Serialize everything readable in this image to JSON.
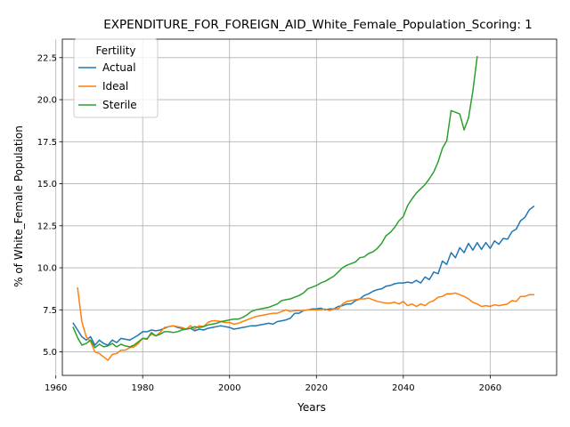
{
  "chart_data": {
    "type": "line",
    "title": "EXPENDITURE_FOR_FOREIGN_AID_White_Female_Population_Scoring: 1",
    "xlabel": "Years",
    "ylabel": "% of White_Female Population",
    "xlim": [
      1961.5,
      2075.3
    ],
    "ylim": [
      3.6,
      23.6
    ],
    "xticks": [
      1960,
      1980,
      2000,
      2020,
      2040,
      2060
    ],
    "yticks": [
      5.0,
      7.5,
      10.0,
      12.5,
      15.0,
      17.5,
      20.0,
      22.5
    ],
    "xtick_labels": [
      "1960",
      "1980",
      "2000",
      "2020",
      "2040",
      "2060"
    ],
    "ytick_labels": [
      "5.0",
      "7.5",
      "10.0",
      "12.5",
      "15.0",
      "17.5",
      "20.0",
      "22.5"
    ],
    "grid": true,
    "legend": {
      "title": "Fertility",
      "position": "top-left"
    },
    "series": [
      {
        "name": "Actual",
        "color": "#1f77b4",
        "points": [
          [
            1964,
            6.7
          ],
          [
            1965,
            6.3
          ],
          [
            1966,
            5.9
          ],
          [
            1967,
            5.7
          ],
          [
            1968,
            5.9
          ],
          [
            1969,
            5.4
          ],
          [
            1970,
            5.7
          ],
          [
            1971,
            5.5
          ],
          [
            1972,
            5.4
          ],
          [
            1973,
            5.7
          ],
          [
            1974,
            5.55
          ],
          [
            1975,
            5.8
          ],
          [
            1976,
            5.75
          ],
          [
            1977,
            5.7
          ],
          [
            1978,
            5.85
          ],
          [
            1979,
            6.0
          ],
          [
            1980,
            6.2
          ],
          [
            1981,
            6.2
          ],
          [
            1982,
            6.3
          ],
          [
            1983,
            6.25
          ],
          [
            1984,
            6.3
          ],
          [
            1985,
            6.4
          ],
          [
            1986,
            6.5
          ],
          [
            1987,
            6.55
          ],
          [
            1988,
            6.45
          ],
          [
            1989,
            6.4
          ],
          [
            1990,
            6.35
          ],
          [
            1991,
            6.4
          ],
          [
            1992,
            6.25
          ],
          [
            1993,
            6.35
          ],
          [
            1994,
            6.3
          ],
          [
            1995,
            6.4
          ],
          [
            1996,
            6.45
          ],
          [
            1997,
            6.5
          ],
          [
            1998,
            6.55
          ],
          [
            1999,
            6.5
          ],
          [
            2000,
            6.45
          ],
          [
            2001,
            6.35
          ],
          [
            2002,
            6.4
          ],
          [
            2003,
            6.45
          ],
          [
            2004,
            6.5
          ],
          [
            2005,
            6.55
          ],
          [
            2006,
            6.55
          ],
          [
            2007,
            6.6
          ],
          [
            2008,
            6.65
          ],
          [
            2009,
            6.7
          ],
          [
            2010,
            6.65
          ],
          [
            2011,
            6.8
          ],
          [
            2012,
            6.85
          ],
          [
            2013,
            6.9
          ],
          [
            2014,
            7.0
          ],
          [
            2015,
            7.3
          ],
          [
            2016,
            7.3
          ],
          [
            2017,
            7.45
          ],
          [
            2018,
            7.5
          ],
          [
            2019,
            7.55
          ],
          [
            2020,
            7.55
          ],
          [
            2021,
            7.6
          ],
          [
            2022,
            7.5
          ],
          [
            2023,
            7.55
          ],
          [
            2024,
            7.55
          ],
          [
            2025,
            7.7
          ],
          [
            2026,
            7.75
          ],
          [
            2027,
            7.85
          ],
          [
            2028,
            7.85
          ],
          [
            2029,
            8.05
          ],
          [
            2030,
            8.15
          ],
          [
            2031,
            8.35
          ],
          [
            2032,
            8.45
          ],
          [
            2033,
            8.6
          ],
          [
            2034,
            8.7
          ],
          [
            2035,
            8.75
          ],
          [
            2036,
            8.9
          ],
          [
            2037,
            8.95
          ],
          [
            2038,
            9.05
          ],
          [
            2039,
            9.1
          ],
          [
            2040,
            9.1
          ],
          [
            2041,
            9.15
          ],
          [
            2042,
            9.1
          ],
          [
            2043,
            9.25
          ],
          [
            2044,
            9.1
          ],
          [
            2045,
            9.45
          ],
          [
            2046,
            9.3
          ],
          [
            2047,
            9.75
          ],
          [
            2048,
            9.65
          ],
          [
            2049,
            10.4
          ],
          [
            2050,
            10.2
          ],
          [
            2051,
            10.9
          ],
          [
            2052,
            10.6
          ],
          [
            2053,
            11.2
          ],
          [
            2054,
            10.9
          ],
          [
            2055,
            11.45
          ],
          [
            2056,
            11.05
          ],
          [
            2057,
            11.5
          ],
          [
            2058,
            11.1
          ],
          [
            2059,
            11.5
          ],
          [
            2060,
            11.15
          ],
          [
            2061,
            11.6
          ],
          [
            2062,
            11.4
          ],
          [
            2063,
            11.75
          ],
          [
            2064,
            11.7
          ],
          [
            2065,
            12.15
          ],
          [
            2066,
            12.3
          ],
          [
            2067,
            12.8
          ],
          [
            2068,
            13.0
          ],
          [
            2069,
            13.45
          ],
          [
            2070,
            13.65
          ]
        ]
      },
      {
        "name": "Ideal",
        "color": "#ff7f0e",
        "points": [
          [
            1965,
            8.8
          ],
          [
            1966,
            6.8
          ],
          [
            1967,
            5.9
          ],
          [
            1968,
            5.6
          ],
          [
            1969,
            5.0
          ],
          [
            1970,
            4.9
          ],
          [
            1971,
            4.7
          ],
          [
            1972,
            4.5
          ],
          [
            1973,
            4.85
          ],
          [
            1974,
            4.9
          ],
          [
            1975,
            5.1
          ],
          [
            1976,
            5.1
          ],
          [
            1977,
            5.25
          ],
          [
            1978,
            5.3
          ],
          [
            1979,
            5.5
          ],
          [
            1980,
            5.8
          ],
          [
            1981,
            5.8
          ],
          [
            1982,
            6.05
          ],
          [
            1983,
            5.95
          ],
          [
            1984,
            6.15
          ],
          [
            1985,
            6.45
          ],
          [
            1986,
            6.5
          ],
          [
            1987,
            6.55
          ],
          [
            1988,
            6.5
          ],
          [
            1989,
            6.45
          ],
          [
            1990,
            6.35
          ],
          [
            1991,
            6.55
          ],
          [
            1992,
            6.35
          ],
          [
            1993,
            6.55
          ],
          [
            1994,
            6.5
          ],
          [
            1995,
            6.75
          ],
          [
            1996,
            6.85
          ],
          [
            1997,
            6.85
          ],
          [
            1998,
            6.8
          ],
          [
            1999,
            6.75
          ],
          [
            2000,
            6.75
          ],
          [
            2001,
            6.65
          ],
          [
            2002,
            6.7
          ],
          [
            2003,
            6.8
          ],
          [
            2004,
            6.9
          ],
          [
            2005,
            7.0
          ],
          [
            2006,
            7.1
          ],
          [
            2007,
            7.15
          ],
          [
            2008,
            7.2
          ],
          [
            2009,
            7.25
          ],
          [
            2010,
            7.3
          ],
          [
            2011,
            7.3
          ],
          [
            2012,
            7.4
          ],
          [
            2013,
            7.5
          ],
          [
            2014,
            7.4
          ],
          [
            2015,
            7.45
          ],
          [
            2016,
            7.45
          ],
          [
            2017,
            7.45
          ],
          [
            2018,
            7.5
          ],
          [
            2019,
            7.5
          ],
          [
            2020,
            7.5
          ],
          [
            2021,
            7.5
          ],
          [
            2022,
            7.55
          ],
          [
            2023,
            7.45
          ],
          [
            2024,
            7.55
          ],
          [
            2025,
            7.55
          ],
          [
            2026,
            7.85
          ],
          [
            2027,
            8.0
          ],
          [
            2028,
            8.05
          ],
          [
            2029,
            8.1
          ],
          [
            2030,
            8.15
          ],
          [
            2031,
            8.15
          ],
          [
            2032,
            8.2
          ],
          [
            2033,
            8.1
          ],
          [
            2034,
            8.0
          ],
          [
            2035,
            7.95
          ],
          [
            2036,
            7.9
          ],
          [
            2037,
            7.9
          ],
          [
            2038,
            7.95
          ],
          [
            2039,
            7.85
          ],
          [
            2040,
            8.0
          ],
          [
            2041,
            7.75
          ],
          [
            2042,
            7.85
          ],
          [
            2043,
            7.7
          ],
          [
            2044,
            7.85
          ],
          [
            2045,
            7.75
          ],
          [
            2046,
            7.95
          ],
          [
            2047,
            8.05
          ],
          [
            2048,
            8.25
          ],
          [
            2049,
            8.3
          ],
          [
            2050,
            8.45
          ],
          [
            2051,
            8.45
          ],
          [
            2052,
            8.5
          ],
          [
            2053,
            8.4
          ],
          [
            2054,
            8.3
          ],
          [
            2055,
            8.15
          ],
          [
            2056,
            7.95
          ],
          [
            2057,
            7.85
          ],
          [
            2058,
            7.7
          ],
          [
            2059,
            7.75
          ],
          [
            2060,
            7.7
          ],
          [
            2061,
            7.8
          ],
          [
            2062,
            7.75
          ],
          [
            2063,
            7.8
          ],
          [
            2064,
            7.85
          ],
          [
            2065,
            8.05
          ],
          [
            2066,
            8.0
          ],
          [
            2067,
            8.3
          ],
          [
            2068,
            8.3
          ],
          [
            2069,
            8.4
          ],
          [
            2070,
            8.4
          ]
        ]
      },
      {
        "name": "Sterile",
        "color": "#2ca02c",
        "points": [
          [
            1964,
            6.45
          ],
          [
            1965,
            5.85
          ],
          [
            1966,
            5.4
          ],
          [
            1967,
            5.5
          ],
          [
            1968,
            5.7
          ],
          [
            1969,
            5.25
          ],
          [
            1970,
            5.45
          ],
          [
            1971,
            5.3
          ],
          [
            1972,
            5.35
          ],
          [
            1973,
            5.5
          ],
          [
            1974,
            5.3
          ],
          [
            1975,
            5.45
          ],
          [
            1976,
            5.35
          ],
          [
            1977,
            5.3
          ],
          [
            1978,
            5.4
          ],
          [
            1979,
            5.6
          ],
          [
            1980,
            5.8
          ],
          [
            1981,
            5.75
          ],
          [
            1982,
            6.15
          ],
          [
            1983,
            5.95
          ],
          [
            1984,
            6.05
          ],
          [
            1985,
            6.2
          ],
          [
            1986,
            6.2
          ],
          [
            1987,
            6.15
          ],
          [
            1988,
            6.2
          ],
          [
            1989,
            6.3
          ],
          [
            1990,
            6.35
          ],
          [
            1991,
            6.4
          ],
          [
            1992,
            6.5
          ],
          [
            1993,
            6.45
          ],
          [
            1994,
            6.5
          ],
          [
            1995,
            6.6
          ],
          [
            1996,
            6.65
          ],
          [
            1997,
            6.7
          ],
          [
            1998,
            6.8
          ],
          [
            1999,
            6.85
          ],
          [
            2000,
            6.9
          ],
          [
            2001,
            6.95
          ],
          [
            2002,
            6.95
          ],
          [
            2003,
            7.05
          ],
          [
            2004,
            7.2
          ],
          [
            2005,
            7.4
          ],
          [
            2006,
            7.5
          ],
          [
            2007,
            7.55
          ],
          [
            2008,
            7.6
          ],
          [
            2009,
            7.65
          ],
          [
            2010,
            7.75
          ],
          [
            2011,
            7.85
          ],
          [
            2012,
            8.05
          ],
          [
            2013,
            8.1
          ],
          [
            2014,
            8.15
          ],
          [
            2015,
            8.25
          ],
          [
            2016,
            8.35
          ],
          [
            2017,
            8.5
          ],
          [
            2018,
            8.75
          ],
          [
            2019,
            8.85
          ],
          [
            2020,
            8.95
          ],
          [
            2021,
            9.1
          ],
          [
            2022,
            9.2
          ],
          [
            2023,
            9.35
          ],
          [
            2024,
            9.5
          ],
          [
            2025,
            9.75
          ],
          [
            2026,
            10.0
          ],
          [
            2027,
            10.15
          ],
          [
            2028,
            10.25
          ],
          [
            2029,
            10.35
          ],
          [
            2030,
            10.6
          ],
          [
            2031,
            10.65
          ],
          [
            2032,
            10.85
          ],
          [
            2033,
            10.95
          ],
          [
            2034,
            11.15
          ],
          [
            2035,
            11.45
          ],
          [
            2036,
            11.9
          ],
          [
            2037,
            12.1
          ],
          [
            2038,
            12.4
          ],
          [
            2039,
            12.8
          ],
          [
            2040,
            13.05
          ],
          [
            2041,
            13.7
          ],
          [
            2042,
            14.1
          ],
          [
            2043,
            14.45
          ],
          [
            2044,
            14.7
          ],
          [
            2045,
            14.95
          ],
          [
            2046,
            15.3
          ],
          [
            2047,
            15.7
          ],
          [
            2048,
            16.3
          ],
          [
            2049,
            17.1
          ],
          [
            2050,
            17.55
          ],
          [
            2051,
            19.35
          ],
          [
            2052,
            19.25
          ],
          [
            2053,
            19.15
          ],
          [
            2054,
            18.2
          ],
          [
            2055,
            18.9
          ],
          [
            2056,
            20.5
          ],
          [
            2057,
            22.55
          ]
        ]
      }
    ]
  }
}
